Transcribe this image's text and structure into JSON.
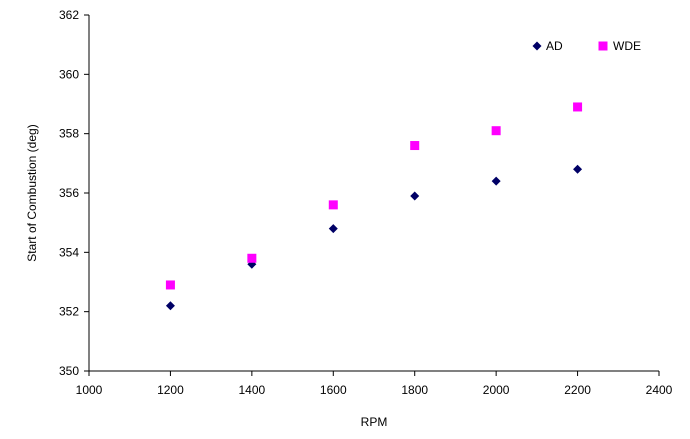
{
  "chart_data": {
    "type": "scatter",
    "title": "",
    "xlabel": "RPM",
    "ylabel": "Start of Combustion (deg)",
    "xlim": [
      1000,
      2400
    ],
    "ylim": [
      350,
      362
    ],
    "xticks": [
      1000,
      1200,
      1400,
      1600,
      1800,
      2000,
      2200,
      2400
    ],
    "yticks": [
      350,
      352,
      354,
      356,
      358,
      360,
      362
    ],
    "grid": false,
    "legend_position": "top-right",
    "series": [
      {
        "name": "AD",
        "marker": "diamond",
        "color": "#000066",
        "points": [
          {
            "x": 1200,
            "y": 352.2
          },
          {
            "x": 1400,
            "y": 353.6
          },
          {
            "x": 1600,
            "y": 354.8
          },
          {
            "x": 1800,
            "y": 355.9
          },
          {
            "x": 2000,
            "y": 356.4
          },
          {
            "x": 2200,
            "y": 356.8
          }
        ]
      },
      {
        "name": "WDE",
        "marker": "square",
        "color": "#ff00ff",
        "points": [
          {
            "x": 1200,
            "y": 352.9
          },
          {
            "x": 1400,
            "y": 353.8
          },
          {
            "x": 1600,
            "y": 355.6
          },
          {
            "x": 1800,
            "y": 357.6
          },
          {
            "x": 2000,
            "y": 358.1
          },
          {
            "x": 2200,
            "y": 358.9
          }
        ]
      }
    ]
  }
}
